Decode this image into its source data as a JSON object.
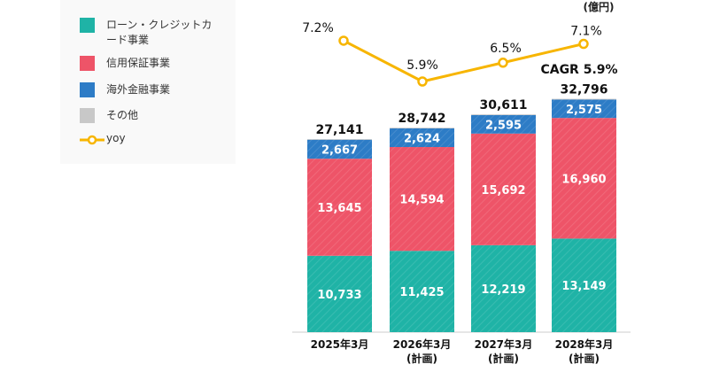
{
  "unit_label": "(億円)",
  "cagr_label": "CAGR 5.9%",
  "legend": [
    {
      "label": "ローン・クレジットカード事業",
      "color": "#1fb3a6"
    },
    {
      "label": "信用保証事業",
      "color": "#ee5468"
    },
    {
      "label": "海外金融事業",
      "color": "#2d7cc6"
    },
    {
      "label": "その他",
      "color": "#c8c8c8"
    },
    {
      "label": "yoy",
      "color": "#f7b500"
    }
  ],
  "chart_data": {
    "type": "bar",
    "stacked": true,
    "categories": [
      [
        "2025年3月"
      ],
      [
        "2026年3月",
        "(計画)"
      ],
      [
        "2027年3月",
        "(計画)"
      ],
      [
        "2028年3月",
        "(計画)"
      ]
    ],
    "series": [
      {
        "name": "ローン・クレジットカード事業",
        "values": [
          10733,
          11425,
          12219,
          13149
        ],
        "value_labels": [
          "10,733",
          "11,425",
          "12,219",
          "13,149"
        ]
      },
      {
        "name": "信用保証事業",
        "values": [
          13645,
          14594,
          15692,
          16960
        ],
        "value_labels": [
          "13,645",
          "14,594",
          "15,692",
          "16,960"
        ]
      },
      {
        "name": "海外金融事業",
        "values": [
          2667,
          2624,
          2595,
          2575
        ],
        "value_labels": [
          "2,667",
          "2,624",
          "2,595",
          "2,575"
        ]
      },
      {
        "name": "その他",
        "values": [
          96,
          99,
          105,
          112
        ]
      }
    ],
    "totals": [
      "27,141",
      "28,742",
      "30,611",
      "32,796"
    ],
    "line": {
      "name": "yoy",
      "values": [
        7.2,
        5.9,
        6.5,
        7.1
      ],
      "labels": [
        "7.2%",
        "5.9%",
        "6.5%",
        "7.1%"
      ]
    },
    "ylabel": "(億円)",
    "grid": false,
    "legend_position": "left"
  }
}
